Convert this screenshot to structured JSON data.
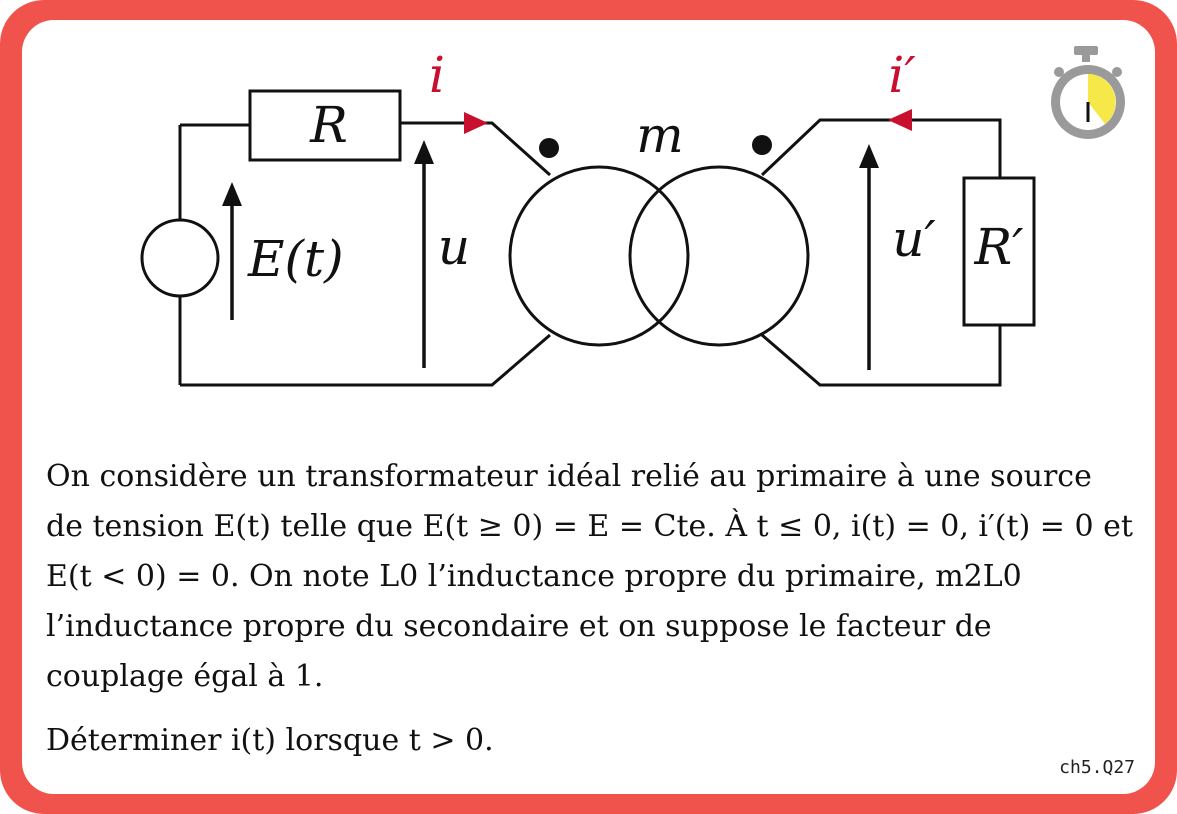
{
  "card": {
    "frame_color": "#f0524c",
    "reference": "ch5.Q27",
    "timer_icon": "stopwatch-icon",
    "timer_fill_color": "#f7e84a"
  },
  "diagram": {
    "labels": {
      "R": "R",
      "i": "i",
      "m": "m",
      "i_prime": "i′",
      "E": "E(t)",
      "u": "u",
      "u_prime": "u′",
      "R_prime": "R′"
    },
    "current_arrow_color": "#c8102e",
    "wire_color": "#111111"
  },
  "question": {
    "paragraph1": "On considère un transformateur idéal relié au primaire à une source de tension E(t) telle que E(t ≥ 0) = E = Cte. À t ≤ 0, i(t) = 0, i′(t) = 0 et E(t < 0) = 0. On note L0 l’inductance propre du primaire, m2L0 l’inductance propre du secondaire et on suppose le facteur de couplage égal à 1.",
    "paragraph2": "Déterminer i(t) lorsque t > 0."
  }
}
